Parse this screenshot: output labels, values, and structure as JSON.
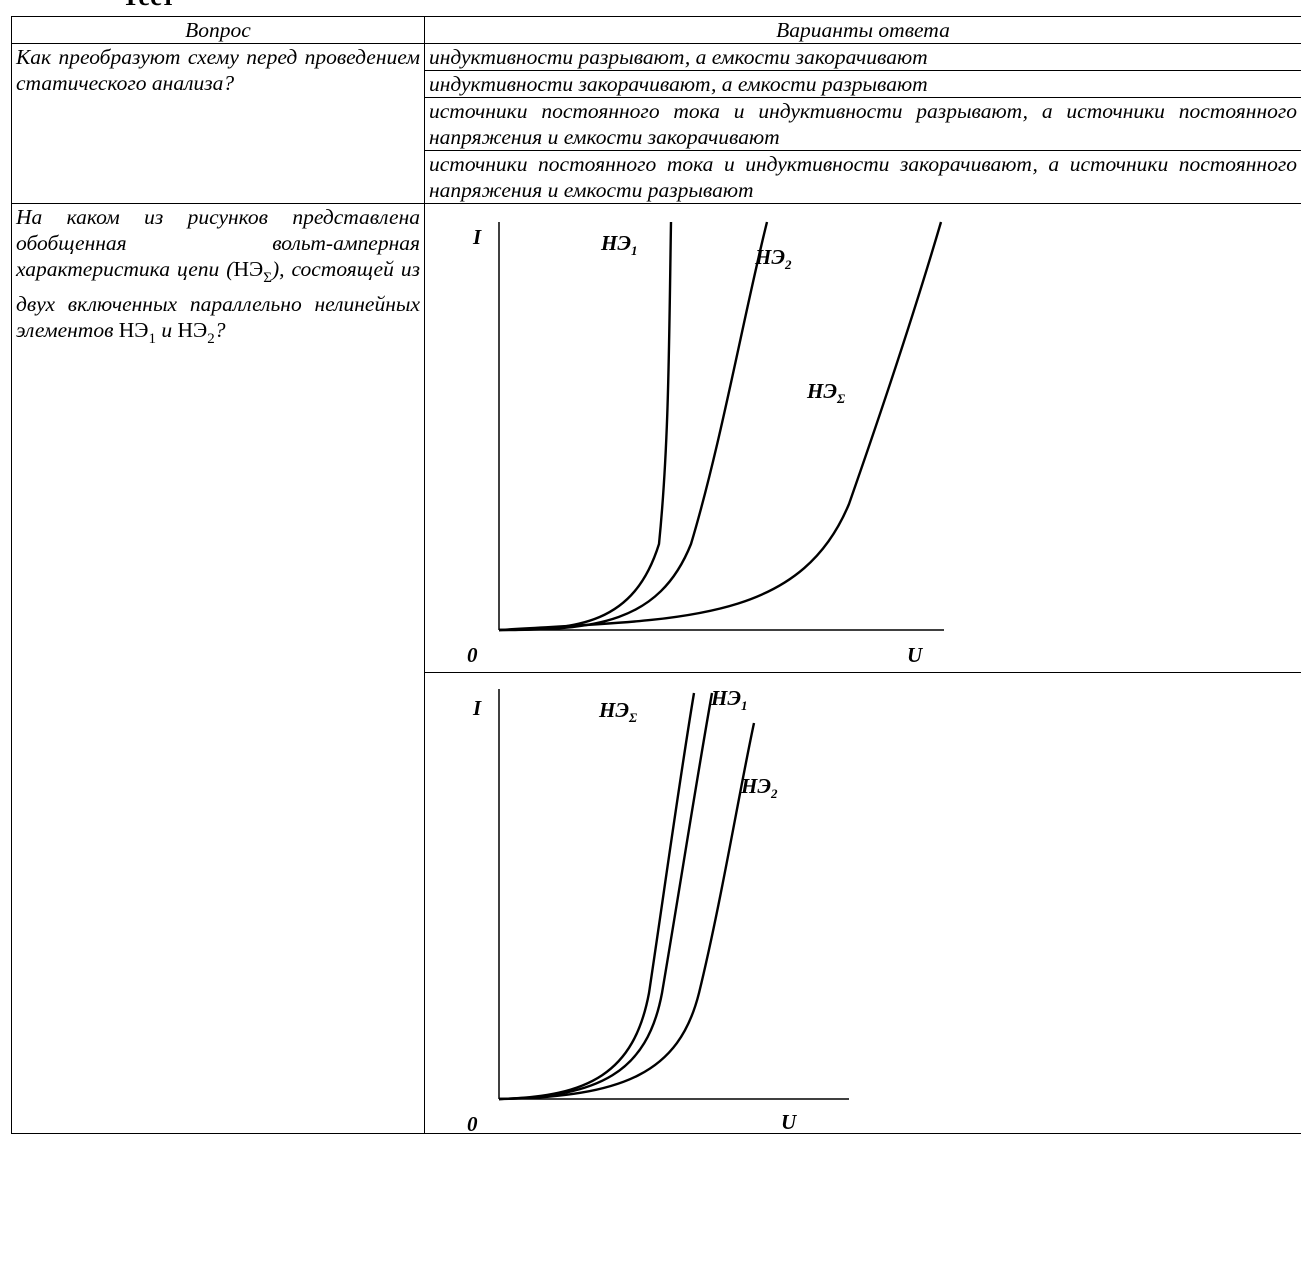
{
  "heading": "Тест",
  "columns": {
    "question": "Вопрос",
    "answers": "Варианты ответа"
  },
  "question1": {
    "text": "Как преобразуют схему перед проведением статического анализа?",
    "answers": [
      "индуктивности разрывают, а емкости закорачивают",
      "индуктивности закорачивают, а емкости разрывают",
      "источники постоянного тока и индуктивности разрывают, а источники постоянного напряжения и емкости закорачивают",
      "источники постоянного тока и индуктивности закорачивают, а источники постоянного напряжения и емкости разрывают"
    ]
  },
  "question2": {
    "text_a": "На каком из рисунков представлена обобщенная вольт-амперная характеристика цепи (",
    "sym_ne": "НЭ",
    "sub_sigma": "Σ",
    "text_b": "), состоящей из двух включенных параллельно нелинейных элементов ",
    "sub_1": "1",
    "text_c": "и ",
    "sub_2": "2",
    "text_d": "?"
  },
  "figures": [
    {
      "axis_y": "I",
      "axis_x": "U",
      "origin": "0",
      "curves": [
        {
          "label": "НЭ",
          "sub": "1"
        },
        {
          "label": "НЭ",
          "sub": "2"
        },
        {
          "label": "НЭ",
          "sub": "Σ"
        }
      ]
    },
    {
      "axis_y": "I",
      "axis_x": "U",
      "origin": "0",
      "curves": [
        {
          "label": "НЭ",
          "sub": "Σ"
        },
        {
          "label": "НЭ",
          "sub": "1"
        },
        {
          "label": "НЭ",
          "sub": "2"
        }
      ]
    }
  ]
}
